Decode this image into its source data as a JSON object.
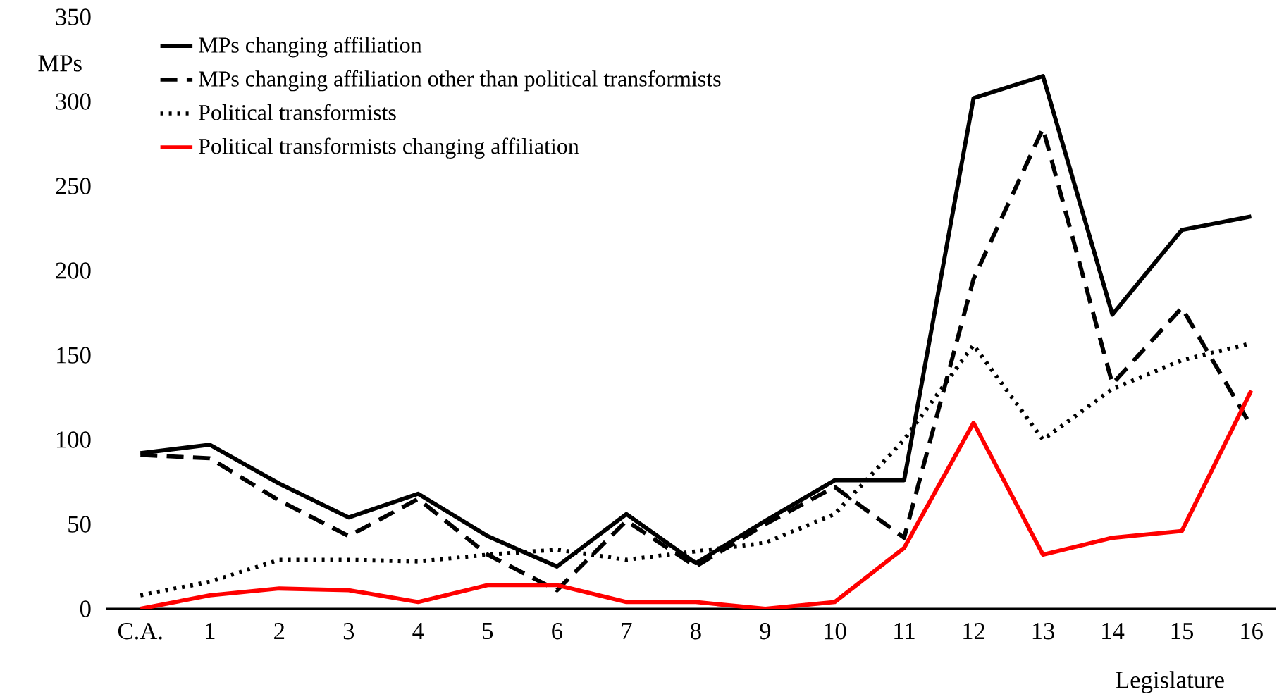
{
  "chart_data": {
    "type": "line",
    "xlabel": "Legislature",
    "ylabel": "MPs",
    "categories": [
      "C.A.",
      "1",
      "2",
      "3",
      "4",
      "5",
      "6",
      "7",
      "8",
      "9",
      "10",
      "11",
      "12",
      "13",
      "14",
      "15",
      "16"
    ],
    "ylim": [
      0,
      350
    ],
    "yticks": [
      0,
      50,
      100,
      150,
      200,
      250,
      300,
      350
    ],
    "grid": false,
    "legend": "top left",
    "marker": "none",
    "series": [
      {
        "name": "MPs changing affiliation",
        "color": "#000000",
        "line_style": "solid",
        "values": [
          92,
          97,
          74,
          54,
          68,
          43,
          25,
          56,
          27,
          52,
          76,
          76,
          302,
          315,
          174,
          224,
          232
        ]
      },
      {
        "name": "MPs changing affiliation other than political transformists",
        "color": "#000000",
        "line_style": "dashed",
        "values": [
          91,
          89,
          64,
          43,
          65,
          32,
          11,
          52,
          25,
          50,
          72,
          42,
          195,
          284,
          133,
          178,
          108
        ]
      },
      {
        "name": "Political transformists",
        "color": "#000000",
        "line_style": "dotted",
        "values": [
          8,
          16,
          29,
          29,
          28,
          32,
          35,
          29,
          34,
          39,
          56,
          100,
          156,
          100,
          130,
          147,
          157
        ]
      },
      {
        "name": "Political transformists changing affiliation",
        "color": "#ff0000",
        "line_style": "solid",
        "values": [
          0,
          8,
          12,
          11,
          4,
          14,
          14,
          4,
          4,
          0,
          4,
          36,
          110,
          32,
          42,
          46,
          129
        ]
      }
    ]
  }
}
